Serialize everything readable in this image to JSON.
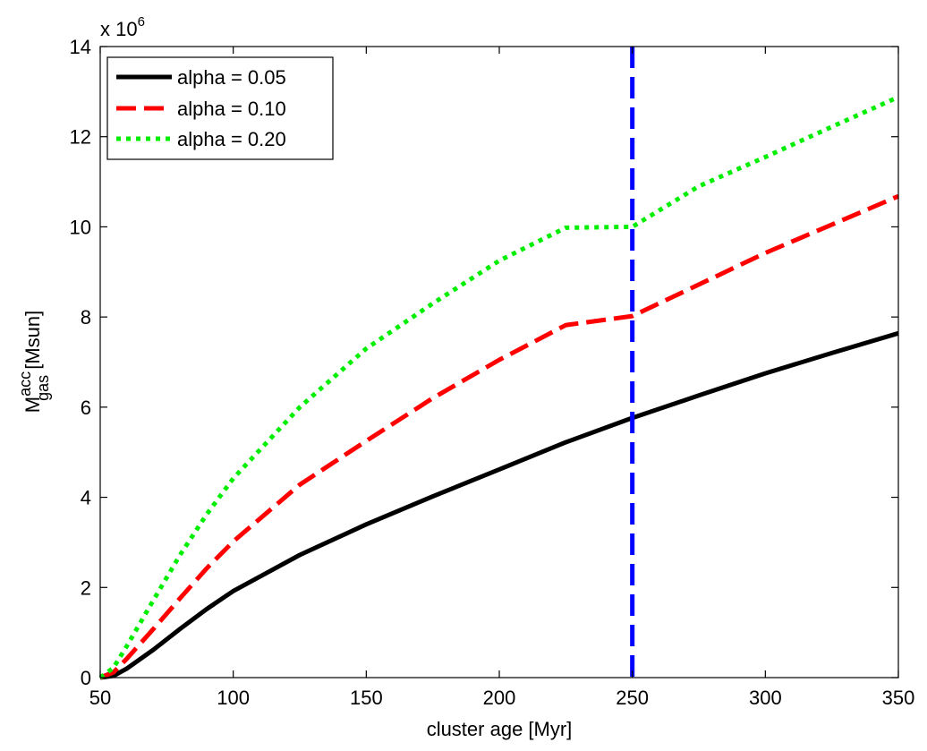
{
  "chart_data": {
    "type": "line",
    "title": "",
    "xlabel": "cluster age [Myr]",
    "ylabel": {
      "main": "M",
      "superscript": "acc",
      "subscript": "gas",
      "unit": " [Msun]"
    },
    "y_multiplier": {
      "prefix": "x 10",
      "exponent": "6"
    },
    "xlim": [
      50,
      350
    ],
    "ylim": [
      0,
      14
    ],
    "xticks": [
      50,
      100,
      150,
      200,
      250,
      300,
      350
    ],
    "yticks": [
      0,
      2,
      4,
      6,
      8,
      10,
      12,
      14
    ],
    "grid": false,
    "legend_position": "top-left",
    "series": [
      {
        "name": "alpha = 0.05",
        "color": "#000000",
        "style": "solid",
        "x": [
          50,
          55,
          60,
          70,
          80,
          90,
          100,
          125,
          150,
          175,
          200,
          225,
          250,
          275,
          300,
          325,
          350
        ],
        "y": [
          0,
          0.04,
          0.2,
          0.62,
          1.08,
          1.52,
          1.92,
          2.72,
          3.4,
          4.02,
          4.62,
          5.22,
          5.76,
          6.26,
          6.75,
          7.2,
          7.64
        ]
      },
      {
        "name": "alpha = 0.10",
        "color": "#ff0000",
        "style": "dashed",
        "x": [
          50,
          55,
          60,
          70,
          80,
          90,
          100,
          125,
          150,
          175,
          200,
          225,
          250,
          275,
          300,
          325,
          350
        ],
        "y": [
          0,
          0.12,
          0.42,
          1.08,
          1.76,
          2.42,
          3.02,
          4.28,
          5.25,
          6.2,
          7.05,
          7.82,
          8.02,
          8.72,
          9.42,
          10.05,
          10.68
        ]
      },
      {
        "name": "alpha = 0.20",
        "color": "#00ee00",
        "style": "dotted",
        "x": [
          50,
          55,
          60,
          70,
          80,
          90,
          100,
          125,
          150,
          175,
          200,
          225,
          250,
          275,
          300,
          325,
          350
        ],
        "y": [
          0,
          0.22,
          0.7,
          1.72,
          2.72,
          3.62,
          4.42,
          6.0,
          7.3,
          8.3,
          9.25,
          9.98,
          10.0,
          10.9,
          11.55,
          12.22,
          12.88
        ]
      }
    ],
    "vertical_lines": [
      {
        "name": "age-marker",
        "x": 250,
        "color": "#0000ff",
        "style": "dashed"
      }
    ]
  }
}
